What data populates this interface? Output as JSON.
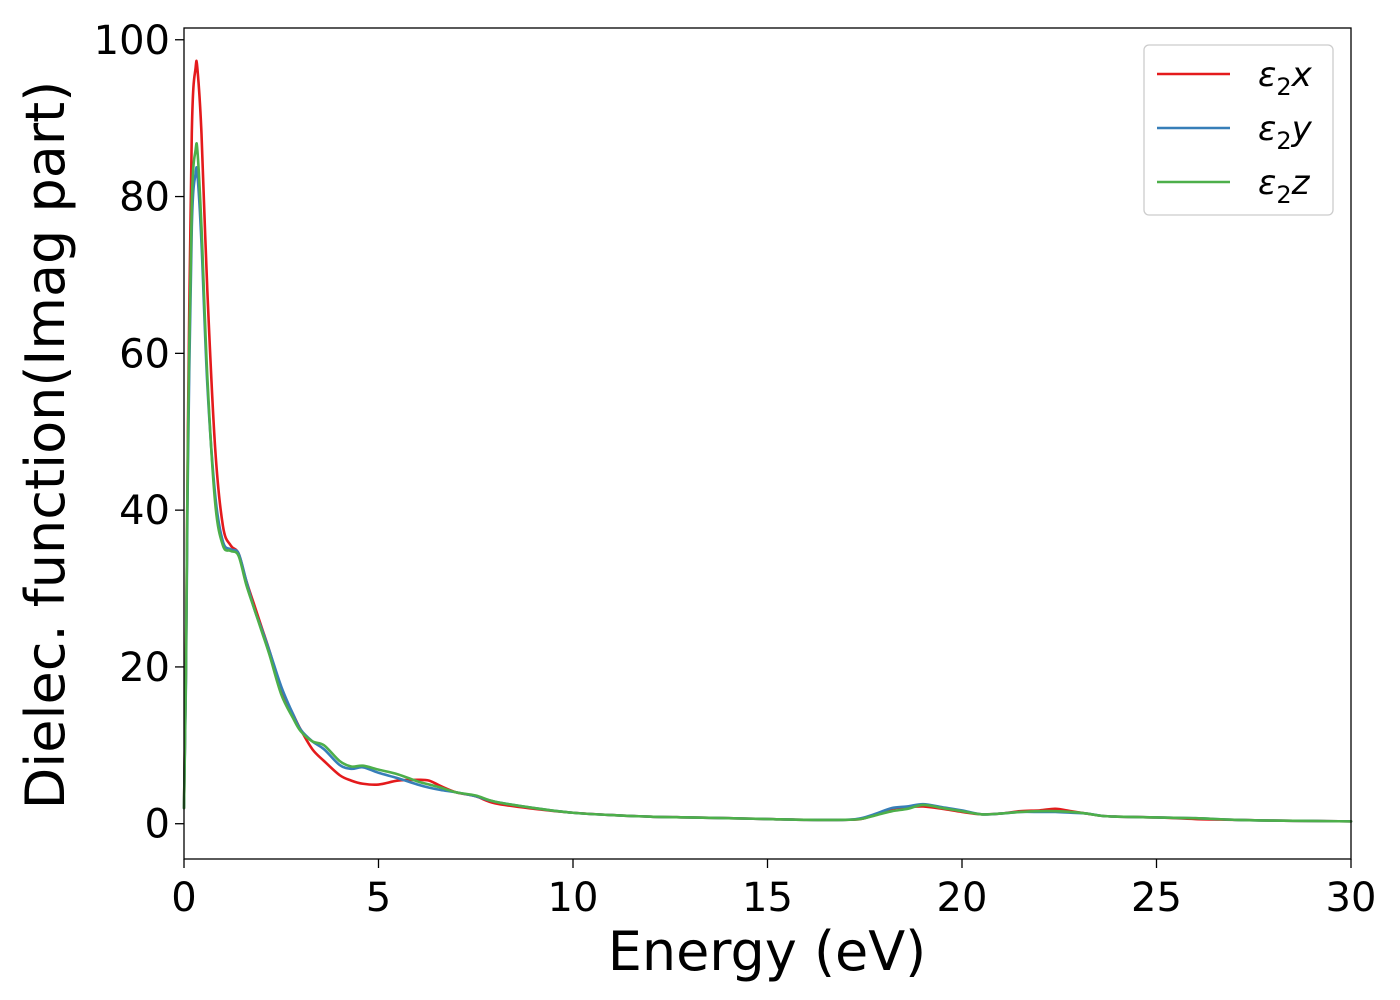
{
  "chart_data": {
    "type": "line",
    "title": "",
    "xlabel": "Energy (eV)",
    "ylabel": "Dielec. function(Imag part)",
    "xlim": [
      0,
      30
    ],
    "ylim": [
      -4.5,
      101.5
    ],
    "xticks": [
      0,
      5,
      10,
      15,
      20,
      25,
      30
    ],
    "yticks": [
      0,
      20,
      40,
      60,
      80,
      100
    ],
    "grid": false,
    "legend_position": "top-right",
    "series": [
      {
        "name": "ε₂x",
        "legend_base": "ε",
        "legend_sub": "2",
        "legend_axis": "x",
        "color": "#e41a1c",
        "x": [
          0,
          0.05,
          0.1,
          0.2,
          0.3,
          0.35,
          0.45,
          0.6,
          0.8,
          1.0,
          1.2,
          1.4,
          1.6,
          1.8,
          2.0,
          2.2,
          2.5,
          2.8,
          3.0,
          3.3,
          3.6,
          4.0,
          4.3,
          4.6,
          5.0,
          5.5,
          6.0,
          6.3,
          6.6,
          7.0,
          7.5,
          8.0,
          9.0,
          10.0,
          11.0,
          12.0,
          13.0,
          14.0,
          15.0,
          16.0,
          17.0,
          17.4,
          17.8,
          18.2,
          18.6,
          19.0,
          19.5,
          20.0,
          20.5,
          21.0,
          21.5,
          22.0,
          22.4,
          22.8,
          23.2,
          23.6,
          24.0,
          25.0,
          26.0,
          27.0,
          28.0,
          29.0,
          30.0
        ],
        "y": [
          2,
          20,
          50,
          88,
          96.5,
          96,
          88,
          68,
          48,
          38,
          35.5,
          34.5,
          31,
          28,
          25,
          22,
          17,
          14,
          12,
          9.5,
          8,
          6.2,
          5.5,
          5.1,
          5.0,
          5.5,
          5.6,
          5.5,
          4.8,
          4.0,
          3.5,
          2.6,
          1.9,
          1.4,
          1.1,
          0.9,
          0.8,
          0.7,
          0.6,
          0.5,
          0.5,
          0.6,
          1.2,
          1.9,
          2.1,
          2.2,
          1.9,
          1.5,
          1.2,
          1.3,
          1.6,
          1.7,
          1.9,
          1.6,
          1.3,
          1.0,
          0.9,
          0.8,
          0.6,
          0.5,
          0.4,
          0.35,
          0.3
        ]
      },
      {
        "name": "ε₂y",
        "legend_base": "ε",
        "legend_sub": "2",
        "legend_axis": "y",
        "color": "#377eb8",
        "x": [
          0,
          0.05,
          0.1,
          0.2,
          0.3,
          0.35,
          0.45,
          0.6,
          0.8,
          1.0,
          1.2,
          1.4,
          1.6,
          1.8,
          2.0,
          2.2,
          2.5,
          2.8,
          3.0,
          3.3,
          3.6,
          4.0,
          4.3,
          4.6,
          5.0,
          5.5,
          6.0,
          6.3,
          6.6,
          7.0,
          7.5,
          8.0,
          9.0,
          10.0,
          11.0,
          12.0,
          13.0,
          14.0,
          15.0,
          16.0,
          17.0,
          17.4,
          17.8,
          18.2,
          18.6,
          19.0,
          19.5,
          20.0,
          20.5,
          21.0,
          21.5,
          22.0,
          22.4,
          22.8,
          23.2,
          23.6,
          24.0,
          25.0,
          26.0,
          27.0,
          28.0,
          29.0,
          30.0
        ],
        "y": [
          2,
          18,
          45,
          76,
          83,
          82.5,
          74,
          56,
          42,
          36,
          35,
          34.5,
          31,
          27.5,
          24.8,
          22,
          17.5,
          14,
          12,
          10.5,
          9.5,
          7.5,
          7.0,
          7.2,
          6.5,
          5.8,
          5.0,
          4.6,
          4.3,
          4.0,
          3.5,
          2.8,
          2.0,
          1.4,
          1.1,
          0.9,
          0.8,
          0.7,
          0.6,
          0.5,
          0.5,
          0.7,
          1.3,
          2.0,
          2.2,
          2.5,
          2.1,
          1.7,
          1.2,
          1.3,
          1.5,
          1.5,
          1.5,
          1.4,
          1.3,
          1.0,
          0.9,
          0.8,
          0.7,
          0.5,
          0.4,
          0.35,
          0.3
        ]
      },
      {
        "name": "ε₂z",
        "legend_base": "ε",
        "legend_sub": "2",
        "legend_axis": "z",
        "color": "#4daf4a",
        "x": [
          0,
          0.05,
          0.1,
          0.2,
          0.3,
          0.35,
          0.45,
          0.6,
          0.8,
          1.0,
          1.2,
          1.4,
          1.6,
          1.8,
          2.0,
          2.2,
          2.5,
          2.8,
          3.0,
          3.3,
          3.6,
          4.0,
          4.3,
          4.6,
          5.0,
          5.5,
          6.0,
          6.3,
          6.6,
          7.0,
          7.5,
          8.0,
          9.0,
          10.0,
          11.0,
          12.0,
          13.0,
          14.0,
          15.0,
          16.0,
          17.0,
          17.4,
          17.8,
          18.2,
          18.6,
          19.0,
          19.5,
          20.0,
          20.5,
          21.0,
          21.5,
          22.0,
          22.4,
          22.8,
          23.2,
          23.6,
          24.0,
          25.0,
          26.0,
          27.0,
          28.0,
          29.0,
          30.0
        ],
        "y": [
          2,
          19,
          48,
          79,
          86,
          85.5,
          76,
          57,
          41,
          35.5,
          34.8,
          34.2,
          30.5,
          27.5,
          24.5,
          21.5,
          16.5,
          13.5,
          11.8,
          10.5,
          10.0,
          8.0,
          7.3,
          7.4,
          6.9,
          6.3,
          5.4,
          5.0,
          4.6,
          4.0,
          3.6,
          2.8,
          2.0,
          1.4,
          1.1,
          0.9,
          0.8,
          0.7,
          0.6,
          0.5,
          0.5,
          0.6,
          1.1,
          1.6,
          1.9,
          2.4,
          2.0,
          1.6,
          1.2,
          1.3,
          1.5,
          1.6,
          1.6,
          1.5,
          1.3,
          1.0,
          0.9,
          0.8,
          0.7,
          0.5,
          0.4,
          0.35,
          0.3
        ]
      }
    ]
  }
}
